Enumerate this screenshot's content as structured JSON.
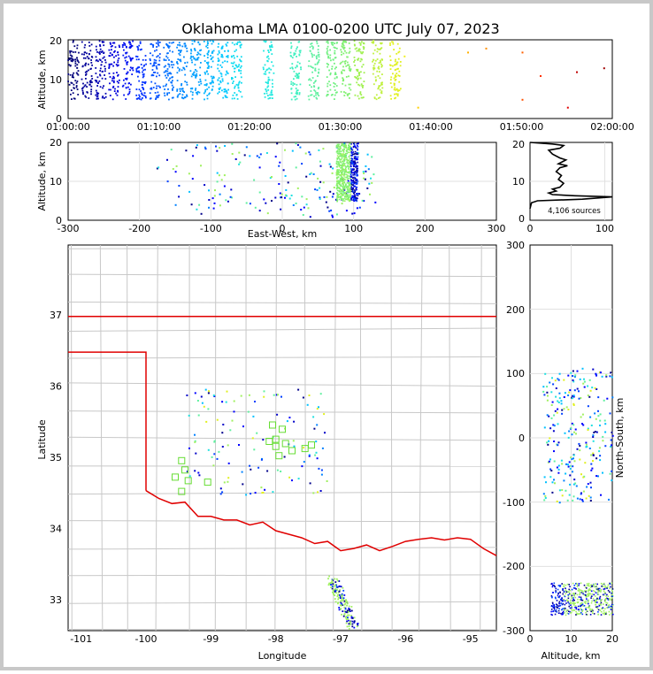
{
  "title": "Oklahoma LMA 0100-0200 UTC July 07, 2023",
  "colors": {
    "frame": "#c8c8c8",
    "state_border": "#e00000",
    "county_lines": "#c8c8c8",
    "grid": "#e0e0e0",
    "profile_line": "#000000",
    "station_marker": "#66dd33"
  },
  "chart_data": [
    {
      "id": "time-altitude",
      "type": "scatter",
      "ylabel": "Altitude, km",
      "ylim": [
        0,
        20
      ],
      "yticks": [
        "0",
        "10",
        "20"
      ],
      "xlim": [
        "01:00:00",
        "02:00:00"
      ],
      "xticks": [
        "01:00:00",
        "01:10:00",
        "01:20:00",
        "01:30:00",
        "01:40:00",
        "01:50:00",
        "02:00:00"
      ],
      "bursts": [
        {
          "t": "01:00:30",
          "alt": [
            5,
            20
          ],
          "color": "#00007a"
        },
        {
          "t": "01:02:00",
          "alt": [
            5,
            20
          ],
          "color": "#00009a"
        },
        {
          "t": "01:03:30",
          "alt": [
            5,
            20
          ],
          "color": "#0000b4"
        },
        {
          "t": "01:05:00",
          "alt": [
            5,
            20
          ],
          "color": "#0000dc"
        },
        {
          "t": "01:06:30",
          "alt": [
            5,
            20
          ],
          "color": "#0010f0"
        },
        {
          "t": "01:08:00",
          "alt": [
            5,
            20
          ],
          "color": "#0030ff"
        },
        {
          "t": "01:09:30",
          "alt": [
            5,
            20
          ],
          "color": "#0050ff"
        },
        {
          "t": "01:11:00",
          "alt": [
            5,
            20
          ],
          "color": "#0070ff"
        },
        {
          "t": "01:12:30",
          "alt": [
            5,
            20
          ],
          "color": "#0088ff"
        },
        {
          "t": "01:14:00",
          "alt": [
            5,
            20
          ],
          "color": "#00a0ff"
        },
        {
          "t": "01:15:30",
          "alt": [
            5,
            20
          ],
          "color": "#00b4ff"
        },
        {
          "t": "01:17:00",
          "alt": [
            5,
            20
          ],
          "color": "#00c8ff"
        },
        {
          "t": "01:18:30",
          "alt": [
            5,
            20
          ],
          "color": "#10dcf0"
        },
        {
          "t": "01:22:00",
          "alt": [
            5,
            20
          ],
          "color": "#20e8e0"
        },
        {
          "t": "01:25:00",
          "alt": [
            5,
            20
          ],
          "color": "#40f0c0"
        },
        {
          "t": "01:27:00",
          "alt": [
            5,
            20
          ],
          "color": "#60f0a0"
        },
        {
          "t": "01:29:00",
          "alt": [
            5,
            20
          ],
          "color": "#70f080"
        },
        {
          "t": "01:30:30",
          "alt": [
            5,
            20
          ],
          "color": "#80f070"
        },
        {
          "t": "01:32:00",
          "alt": [
            5,
            20
          ],
          "color": "#a0f050"
        },
        {
          "t": "01:34:00",
          "alt": [
            5,
            20
          ],
          "color": "#c0f040"
        },
        {
          "t": "01:36:00",
          "alt": [
            5,
            20
          ],
          "color": "#e0f020"
        }
      ],
      "sparse": [
        {
          "t": "01:37:00",
          "alt": 16,
          "color": "#f0f020"
        },
        {
          "t": "01:38:30",
          "alt": 3,
          "color": "#ffd000"
        },
        {
          "t": "01:44:00",
          "alt": 17,
          "color": "#ffb000"
        },
        {
          "t": "01:46:00",
          "alt": 18,
          "color": "#ff9000"
        },
        {
          "t": "01:50:00",
          "alt": 17,
          "color": "#ff6000"
        },
        {
          "t": "01:50:00",
          "alt": 5,
          "color": "#ff5000"
        },
        {
          "t": "01:52:00",
          "alt": 11,
          "color": "#ff3000"
        },
        {
          "t": "01:55:00",
          "alt": 3,
          "color": "#e00000"
        },
        {
          "t": "01:56:00",
          "alt": 12,
          "color": "#c00000"
        },
        {
          "t": "01:59:00",
          "alt": 13,
          "color": "#a00000"
        }
      ]
    },
    {
      "id": "ew-altitude",
      "type": "scatter",
      "xlabel": "East-West, km",
      "ylabel": "Altitude, km",
      "xlim": [
        -300,
        300
      ],
      "ylim": [
        0,
        20
      ],
      "xticks": [
        "-300",
        "-200",
        "-100",
        "0",
        "100",
        "200",
        "300"
      ],
      "yticks": [
        "0",
        "10",
        "20"
      ],
      "dense_column": {
        "x": [
          75,
          105
        ],
        "alt": [
          5,
          20
        ]
      },
      "scatter_region": {
        "x": [
          -180,
          130
        ],
        "alt": [
          1,
          20
        ]
      }
    },
    {
      "id": "altitude-histogram",
      "type": "line",
      "xlim": [
        0,
        110
      ],
      "ylim": [
        0,
        20
      ],
      "xticks": [
        "0",
        "100"
      ],
      "yticks": [
        "0",
        "10",
        "20"
      ],
      "annotation": "4,106 sources",
      "profile": [
        [
          0,
          3
        ],
        [
          2,
          4.5
        ],
        [
          10,
          5
        ],
        [
          40,
          5.2
        ],
        [
          70,
          5.4
        ],
        [
          110,
          6
        ],
        [
          60,
          6.3
        ],
        [
          30,
          6.6
        ],
        [
          25,
          7
        ],
        [
          35,
          7.5
        ],
        [
          30,
          8
        ],
        [
          40,
          8.5
        ],
        [
          45,
          9.5
        ],
        [
          38,
          10.5
        ],
        [
          42,
          11.5
        ],
        [
          35,
          12.5
        ],
        [
          40,
          13.5
        ],
        [
          50,
          14
        ],
        [
          38,
          14.5
        ],
        [
          48,
          15.5
        ],
        [
          40,
          16
        ],
        [
          30,
          17
        ],
        [
          25,
          18
        ],
        [
          40,
          18.5
        ],
        [
          45,
          19.2
        ],
        [
          30,
          19.6
        ],
        [
          0,
          20
        ]
      ]
    },
    {
      "id": "plan-view",
      "type": "scatter",
      "xlabel": "Longitude",
      "ylabel": "Latitude",
      "xlim": [
        -101.2,
        -94.6
      ],
      "ylim": [
        32.6,
        38.0
      ],
      "xticks": [
        "-101",
        "-100",
        "-99",
        "-98",
        "-97",
        "-96",
        "-95"
      ],
      "yticks": [
        "33",
        "34",
        "35",
        "36",
        "37"
      ],
      "stations": [
        [
          -99.55,
          34.75
        ],
        [
          -99.45,
          34.55
        ],
        [
          -99.35,
          34.7
        ],
        [
          -99.4,
          34.85
        ],
        [
          -99.45,
          34.98
        ],
        [
          -99.05,
          34.68
        ],
        [
          -98.05,
          35.48
        ],
        [
          -97.9,
          35.42
        ],
        [
          -98.0,
          35.28
        ],
        [
          -97.85,
          35.22
        ],
        [
          -97.95,
          35.05
        ],
        [
          -97.75,
          35.12
        ],
        [
          -97.55,
          35.15
        ],
        [
          -97.45,
          35.2
        ],
        [
          -98.1,
          35.25
        ],
        [
          -98.0,
          35.18
        ]
      ],
      "state_lines": [
        [
          [
            -101.2,
            37.0
          ],
          [
            -94.6,
            37.0
          ]
        ],
        [
          [
            -101.2,
            36.5
          ],
          [
            -100.0,
            36.5
          ],
          [
            -100.0,
            34.56
          ]
        ],
        [
          [
            -100.0,
            34.56
          ],
          [
            -99.8,
            34.45
          ],
          [
            -99.6,
            34.38
          ],
          [
            -99.4,
            34.4
          ],
          [
            -99.2,
            34.2
          ],
          [
            -99.0,
            34.2
          ],
          [
            -98.8,
            34.15
          ],
          [
            -98.6,
            34.15
          ],
          [
            -98.4,
            34.08
          ],
          [
            -98.2,
            34.12
          ],
          [
            -98.0,
            34.0
          ],
          [
            -97.8,
            33.95
          ],
          [
            -97.6,
            33.9
          ],
          [
            -97.4,
            33.82
          ],
          [
            -97.2,
            33.85
          ],
          [
            -97.0,
            33.72
          ],
          [
            -96.8,
            33.75
          ],
          [
            -96.6,
            33.8
          ],
          [
            -96.4,
            33.72
          ],
          [
            -96.2,
            33.78
          ],
          [
            -96.0,
            33.85
          ],
          [
            -95.8,
            33.88
          ],
          [
            -95.6,
            33.9
          ],
          [
            -95.4,
            33.87
          ],
          [
            -95.2,
            33.9
          ],
          [
            -95.0,
            33.88
          ],
          [
            -94.8,
            33.75
          ],
          [
            -94.6,
            33.65
          ]
        ]
      ]
    },
    {
      "id": "altitude-ns",
      "type": "scatter",
      "xlabel": "Altitude, km",
      "ylabel": "North-South, km",
      "xlim": [
        0,
        20
      ],
      "ylim": [
        -300,
        300
      ],
      "xticks": [
        "0",
        "10",
        "20"
      ],
      "yticks": [
        "-300",
        "-200",
        "-100",
        "0",
        "100",
        "200",
        "300"
      ],
      "dense_band": {
        "ns": [
          -275,
          -225
        ],
        "alt": [
          5,
          20
        ]
      },
      "scatter_region": {
        "ns": [
          -100,
          110
        ],
        "alt": [
          3,
          20
        ]
      }
    }
  ]
}
